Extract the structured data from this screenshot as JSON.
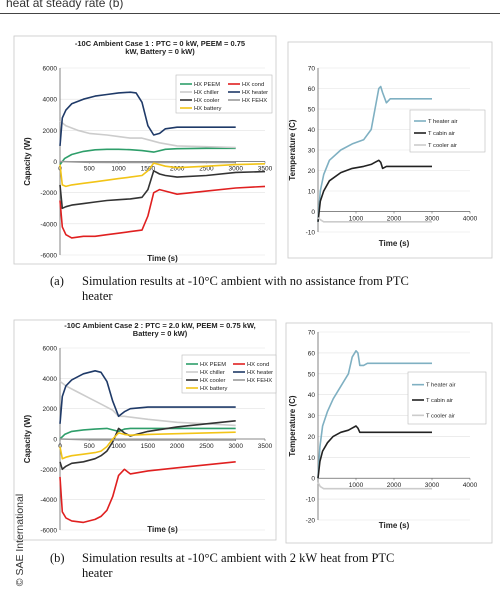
{
  "page": {
    "top_text": "heat at steady rate (b)",
    "caption_a_label": "(a)",
    "caption_a_text": "Simulation results at -10°C ambient with no assistance from PTC",
    "caption_a_text2": "heater",
    "caption_b_label": "(b)",
    "caption_b_text": "Simulation results at -10°C ambient with 2 kW heat from PTC",
    "caption_b_text2": "heater",
    "copyright": "© SAE International"
  },
  "chart_data": [
    {
      "id": "a-capacity",
      "type": "line",
      "title": "-10C Ambient Case 1 : PTC = 0 kW, PEEM = 0.75",
      "title2": "kW, Battery = 0 kW)",
      "xlabel": "Time (s)",
      "ylabel": "Capacity (W)",
      "xlim": [
        0,
        3500
      ],
      "ylim": [
        -6000,
        6000
      ],
      "xticks": [
        0,
        500,
        1000,
        1500,
        2000,
        2500,
        3000,
        3500
      ],
      "yticks": [
        -6000,
        -4000,
        -2000,
        0,
        2000,
        4000,
        6000
      ],
      "legend_position": "top-right",
      "series": [
        {
          "name": "HX PEEM",
          "color": "#2e9e6a",
          "x": [
            0,
            80,
            200,
            400,
            600,
            800,
            1000,
            1200,
            1400,
            1600,
            1800,
            2000,
            2500,
            3000
          ],
          "y": [
            -200,
            200,
            450,
            650,
            750,
            780,
            780,
            760,
            700,
            600,
            780,
            820,
            850,
            850
          ]
        },
        {
          "name": "HX cond",
          "color": "#e02020",
          "x": [
            0,
            40,
            100,
            200,
            400,
            600,
            800,
            1000,
            1200,
            1400,
            1500,
            1600,
            1700,
            1800,
            2000,
            2500,
            3000,
            3500
          ],
          "y": [
            -2500,
            -4200,
            -4700,
            -4900,
            -4800,
            -4800,
            -4700,
            -4600,
            -4500,
            -4400,
            -3500,
            -2000,
            -1800,
            -1900,
            -2100,
            -1900,
            -1700,
            -1600
          ]
        },
        {
          "name": "HX chiller",
          "color": "#cccccc",
          "x": [
            0,
            100,
            300,
            500,
            800,
            1000,
            1200,
            1400,
            1500,
            1700,
            2000,
            2500,
            3000
          ],
          "y": [
            2600,
            2300,
            2000,
            1800,
            1700,
            1600,
            1500,
            1500,
            1400,
            1200,
            1000,
            950,
            900
          ]
        },
        {
          "name": "HX heater",
          "color": "#1f3a68",
          "x": [
            0,
            40,
            100,
            200,
            400,
            600,
            800,
            1000,
            1200,
            1300,
            1400,
            1500,
            1600,
            1700,
            1800,
            2000,
            2500,
            3000
          ],
          "y": [
            1000,
            2800,
            3300,
            3700,
            4000,
            4200,
            4300,
            4400,
            4450,
            4400,
            3800,
            2300,
            1700,
            1800,
            2100,
            2200,
            2200,
            2200
          ]
        },
        {
          "name": "HX cooler",
          "color": "#333333",
          "x": [
            0,
            40,
            100,
            200,
            400,
            600,
            800,
            1000,
            1200,
            1400,
            1500,
            1600,
            1700,
            1800,
            2000,
            2500,
            3000,
            3500
          ],
          "y": [
            -1500,
            -3000,
            -2900,
            -2800,
            -2700,
            -2600,
            -2500,
            -2450,
            -2400,
            -2300,
            -1800,
            -600,
            -800,
            -900,
            -1000,
            -900,
            -700,
            -650
          ]
        },
        {
          "name": "HX FEHX",
          "color": "#9a9a9a",
          "x": [
            0,
            500,
            1000,
            1500,
            2000,
            2500,
            3000
          ],
          "y": [
            0,
            -50,
            -60,
            -60,
            -60,
            -60,
            -60
          ]
        },
        {
          "name": "HX battery",
          "color": "#f2c417",
          "x": [
            0,
            40,
            100,
            200,
            400,
            600,
            800,
            1000,
            1200,
            1400,
            1500,
            1600,
            1700,
            1800,
            2000,
            2500,
            3000,
            3500
          ],
          "y": [
            -200,
            -1500,
            -1600,
            -1500,
            -1400,
            -1300,
            -1200,
            -1100,
            -1000,
            -900,
            -600,
            -100,
            -200,
            -300,
            -400,
            -300,
            -200,
            -150
          ]
        }
      ]
    },
    {
      "id": "a-temperature",
      "type": "line",
      "xlabel": "Time (s)",
      "ylabel": "Temperature (C)",
      "xlim": [
        0,
        4000
      ],
      "ylim": [
        -10,
        70
      ],
      "xticks": [
        1000,
        2000,
        3000,
        4000
      ],
      "yticks": [
        -10,
        0,
        10,
        20,
        30,
        40,
        50,
        60,
        70
      ],
      "legend_position": "top-right",
      "series": [
        {
          "name": "T heater air",
          "color": "#7fb0c2",
          "x": [
            0,
            60,
            150,
            300,
            600,
            900,
            1200,
            1400,
            1500,
            1600,
            1650,
            1700,
            1800,
            1900,
            2000,
            2500,
            3000
          ],
          "y": [
            -5,
            10,
            18,
            25,
            30,
            33,
            35,
            40,
            50,
            60,
            61,
            58,
            53,
            55,
            55,
            55,
            55
          ]
        },
        {
          "name": "T cabin air",
          "color": "#222222",
          "x": [
            0,
            60,
            150,
            300,
            600,
            900,
            1200,
            1400,
            1500,
            1600,
            1650,
            1700,
            1800,
            2000,
            2500,
            3000
          ],
          "y": [
            -5,
            5,
            10,
            15,
            19,
            21,
            22,
            23,
            24,
            25,
            24,
            21,
            22,
            22,
            22,
            22
          ]
        },
        {
          "name": "T cooler air",
          "color": "#cccccc",
          "x": [
            0,
            60,
            150,
            300,
            600,
            1000,
            1500,
            2000,
            3000
          ],
          "y": [
            -3,
            -4,
            -5,
            -5,
            -5,
            -5,
            -5,
            -5,
            -5
          ]
        }
      ]
    },
    {
      "id": "b-capacity",
      "type": "line",
      "title": "-10C Ambient Case 2 : PTC = 2.0 kW, PEEM = 0.75 kW,",
      "title2": "Battery = 0 kW)",
      "xlabel": "Time (s)",
      "ylabel": "Capacity (W)",
      "xlim": [
        0,
        3500
      ],
      "ylim": [
        -6000,
        6000
      ],
      "xticks": [
        0,
        500,
        1000,
        1500,
        2000,
        2500,
        3000,
        3500
      ],
      "yticks": [
        -6000,
        -4000,
        -2000,
        0,
        2000,
        4000,
        6000
      ],
      "legend_position": "top-right",
      "series": [
        {
          "name": "HX PEEM",
          "color": "#2e9e6a",
          "x": [
            0,
            80,
            200,
            400,
            600,
            800,
            900,
            1000,
            1100,
            1200,
            1500,
            2000,
            2500,
            3000
          ],
          "y": [
            0,
            300,
            500,
            600,
            650,
            700,
            600,
            500,
            650,
            700,
            700,
            700,
            700,
            700
          ]
        },
        {
          "name": "HX cond",
          "color": "#e02020",
          "x": [
            0,
            40,
            100,
            200,
            400,
            600,
            700,
            800,
            900,
            1000,
            1100,
            1200,
            1500,
            2000,
            2500,
            3000
          ],
          "y": [
            -2500,
            -4800,
            -5200,
            -5400,
            -5500,
            -5300,
            -5100,
            -4700,
            -3800,
            -2400,
            -2000,
            -2300,
            -2100,
            -1900,
            -1700,
            -1500
          ]
        },
        {
          "name": "HX chiller",
          "color": "#cccccc",
          "x": [
            0,
            100,
            300,
            500,
            700,
            900,
            1000,
            1100,
            1500,
            2000,
            2500,
            3000
          ],
          "y": [
            3800,
            3500,
            3100,
            2700,
            2300,
            1900,
            1500,
            1500,
            1300,
            1100,
            1000,
            900
          ]
        },
        {
          "name": "HX heater",
          "color": "#1f3a68",
          "x": [
            0,
            40,
            100,
            200,
            400,
            600,
            700,
            800,
            900,
            1000,
            1100,
            1200,
            1500,
            2000,
            2500,
            3000
          ],
          "y": [
            1000,
            2800,
            3500,
            3900,
            4300,
            4500,
            4400,
            3800,
            2500,
            1500,
            1800,
            2000,
            2100,
            2100,
            2100,
            2100
          ]
        },
        {
          "name": "HX cooler",
          "color": "#333333",
          "x": [
            0,
            40,
            100,
            200,
            400,
            600,
            700,
            800,
            900,
            1000,
            1100,
            1200,
            1500,
            2000,
            2500,
            3000
          ],
          "y": [
            -1500,
            -2000,
            -1800,
            -1600,
            -1500,
            -1300,
            -1100,
            -800,
            -200,
            700,
            400,
            200,
            500,
            800,
            1000,
            1200
          ]
        },
        {
          "name": "HX FEHX",
          "color": "#9a9a9a",
          "x": [
            0,
            500,
            1000,
            1500,
            2000,
            2500,
            3000
          ],
          "y": [
            0,
            -50,
            -60,
            -60,
            -60,
            -60,
            -60
          ]
        },
        {
          "name": "HX battery",
          "color": "#f2c417",
          "x": [
            0,
            40,
            100,
            200,
            400,
            600,
            700,
            800,
            900,
            1000,
            1100,
            1200,
            1500,
            2000,
            2500,
            3000
          ],
          "y": [
            -500,
            -1300,
            -1200,
            -1100,
            -1000,
            -900,
            -800,
            -500,
            0,
            400,
            300,
            250,
            300,
            350,
            400,
            450
          ]
        }
      ]
    },
    {
      "id": "b-temperature",
      "type": "line",
      "xlabel": "Time (s)",
      "ylabel": "Temperature (C)",
      "xlim": [
        0,
        4000
      ],
      "ylim": [
        -20,
        70
      ],
      "xticks": [
        1000,
        2000,
        3000,
        4000
      ],
      "yticks": [
        -20,
        -10,
        0,
        10,
        20,
        30,
        40,
        50,
        60,
        70
      ],
      "legend_position": "top-right",
      "series": [
        {
          "name": "T heater air",
          "color": "#7fb0c2",
          "x": [
            0,
            50,
            120,
            250,
            400,
            600,
            800,
            900,
            1000,
            1050,
            1100,
            1200,
            1300,
            1500,
            2000,
            3000
          ],
          "y": [
            0,
            15,
            25,
            32,
            38,
            44,
            50,
            58,
            61,
            60,
            54,
            54,
            55,
            55,
            55,
            55
          ]
        },
        {
          "name": "T cabin air",
          "color": "#222222",
          "x": [
            0,
            50,
            120,
            250,
            400,
            600,
            800,
            900,
            1000,
            1050,
            1100,
            1200,
            1500,
            2000,
            3000
          ],
          "y": [
            0,
            8,
            13,
            17,
            20,
            22,
            23,
            24,
            25,
            24,
            22,
            22,
            22,
            22,
            22
          ]
        },
        {
          "name": "T cooler air",
          "color": "#cccccc",
          "x": [
            0,
            60,
            150,
            300,
            600,
            1000,
            1500,
            2000,
            3000
          ],
          "y": [
            -2,
            -4,
            -5,
            -5,
            -5,
            -5,
            -5,
            -5,
            -5
          ]
        }
      ]
    }
  ]
}
